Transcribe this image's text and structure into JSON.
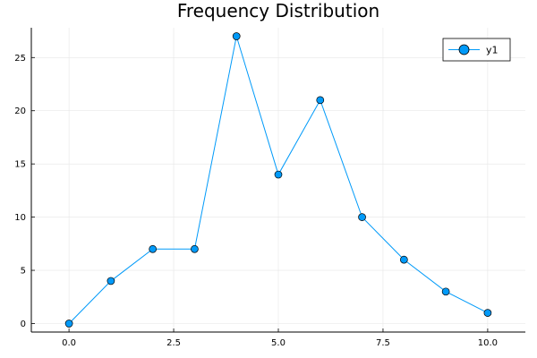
{
  "chart_data": {
    "type": "line",
    "title": "Frequency Distribution",
    "xlabel": "",
    "ylabel": "",
    "x": [
      0,
      1,
      2,
      3,
      4,
      5,
      6,
      7,
      8,
      9,
      10
    ],
    "series": [
      {
        "name": "y1",
        "values": [
          0,
          4,
          7,
          7,
          27,
          14,
          21,
          10,
          6,
          3,
          1
        ]
      }
    ],
    "xlim": [
      -0.9,
      10.9
    ],
    "ylim": [
      -0.8,
      27.8
    ],
    "xticks": [
      0.0,
      2.5,
      5.0,
      7.5,
      10.0
    ],
    "xtick_labels": [
      "0.0",
      "2.5",
      "5.0",
      "7.5",
      "10.0"
    ],
    "yticks": [
      0,
      5,
      10,
      15,
      20,
      25
    ],
    "ytick_labels": [
      "0",
      "5",
      "10",
      "15",
      "20",
      "25"
    ],
    "grid": true,
    "legend_position": "top-right",
    "line_color": "#009af9",
    "marker": "circle"
  }
}
